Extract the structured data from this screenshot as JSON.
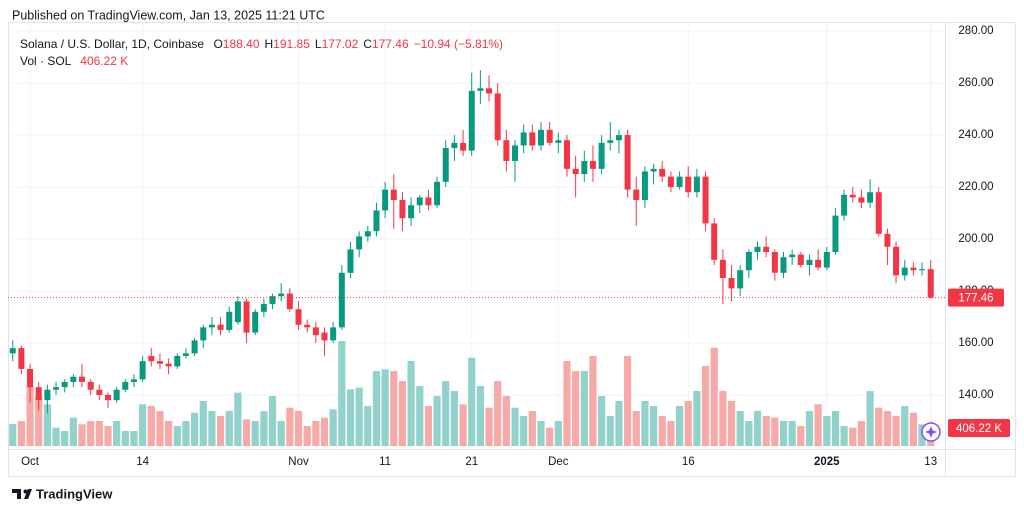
{
  "header": {
    "published": "Published on TradingView.com, Jan 13, 2025 11:21 UTC",
    "brand": "TradingView"
  },
  "chart_data": {
    "type": "candlestick",
    "title": "Solana / U.S. Dollar, 1D, Coinbase",
    "legend": [
      {
        "key": "O",
        "value": {
          "value": 188.4,
          "label": "188.40"
        }
      },
      {
        "key": "H",
        "value": {
          "value": 191.85,
          "label": "191.85"
        }
      },
      {
        "key": "L",
        "value": {
          "value": 177.02,
          "label": "177.02"
        }
      },
      {
        "key": "C",
        "value": {
          "value": 177.46,
          "label": "177.46"
        }
      }
    ],
    "change": "−10.94 (−5.81%)",
    "colors": {
      "up": "#089981",
      "down": "#f23645",
      "volume_up": "#92d2cc",
      "volume_down": "#f7a9a7"
    },
    "grid": true,
    "xlim": [
      -1.47,
      107.65
    ],
    "xticks": [
      {
        "value": 2,
        "label": "Oct"
      },
      {
        "value": 15,
        "label": "14"
      },
      {
        "value": 33,
        "label": "Nov"
      },
      {
        "value": 43,
        "label": "11"
      },
      {
        "value": 53,
        "label": "21"
      },
      {
        "value": 63,
        "label": "Dec"
      },
      {
        "value": 78,
        "label": "16"
      },
      {
        "value": 94,
        "label": "2025"
      },
      {
        "value": 106,
        "label": "13"
      }
    ],
    "ylim": [
      119.2,
      283.5
    ],
    "yticks": [
      {
        "value": 140,
        "label": "140.00"
      },
      {
        "value": 160,
        "label": "160.00"
      },
      {
        "value": 180,
        "label": "180.00"
      },
      {
        "value": 200,
        "label": "200.00"
      },
      {
        "value": 220,
        "label": "220.00"
      },
      {
        "value": 240,
        "label": "240.00"
      },
      {
        "value": 260,
        "label": "260.00"
      },
      {
        "value": 280,
        "label": "280.00"
      }
    ],
    "open": [
      156,
      158,
      150,
      143,
      138,
      142,
      143,
      145,
      147,
      145,
      142,
      140,
      138,
      142,
      145,
      146,
      155,
      153,
      152,
      151,
      155,
      156,
      161,
      166,
      167,
      165,
      168,
      176,
      164,
      172,
      175,
      178,
      179,
      173,
      167,
      166,
      164,
      161,
      166,
      187,
      196,
      201,
      203,
      211,
      219,
      215,
      208,
      213,
      216,
      213,
      222,
      235,
      237,
      234,
      257,
      258,
      256,
      238,
      230,
      236,
      241,
      236,
      242,
      237,
      238,
      227,
      225,
      230,
      227,
      237,
      238,
      240,
      219,
      215,
      226,
      227,
      224,
      220,
      224,
      218,
      224,
      206,
      192,
      185,
      181,
      188,
      195,
      197,
      195,
      187,
      193,
      194,
      190,
      192,
      189,
      195,
      209,
      217,
      216,
      214,
      218,
      202,
      197,
      186,
      189,
      188,
      188.4
    ],
    "high": [
      161,
      159,
      152,
      145,
      144,
      145,
      146,
      148,
      152,
      146,
      144,
      141,
      143,
      146,
      148,
      155,
      158,
      156,
      154,
      156,
      158,
      162,
      167,
      170,
      170,
      174,
      178,
      177,
      173,
      177,
      179,
      183,
      181,
      176,
      169,
      168,
      166,
      168,
      190,
      199,
      203,
      205,
      214,
      222,
      225,
      218,
      216,
      217,
      219,
      224,
      238,
      240,
      242,
      264,
      265,
      263,
      260,
      242,
      238,
      244,
      244,
      245,
      245,
      241,
      240,
      232,
      234,
      236,
      240,
      245,
      242,
      242,
      224,
      228,
      229,
      230,
      226,
      226,
      228,
      227,
      226,
      208,
      196,
      190,
      190,
      196,
      199,
      201,
      196,
      195,
      196,
      195,
      194,
      196,
      197,
      212,
      219,
      220,
      219,
      223,
      220,
      204,
      199,
      192,
      191,
      191,
      191.85
    ],
    "low": [
      153,
      148,
      137,
      134,
      133,
      140,
      141,
      143,
      143,
      140,
      138,
      135,
      137,
      141,
      143,
      145,
      151,
      150,
      148,
      150,
      154,
      155,
      158,
      163,
      163,
      164,
      167,
      160,
      163,
      170,
      173,
      176,
      172,
      165,
      164,
      160,
      155,
      160,
      165,
      185,
      193,
      199,
      201,
      208,
      204,
      203,
      205,
      210,
      211,
      212,
      220,
      230,
      232,
      232,
      252,
      253,
      236,
      226,
      222,
      233,
      234,
      234,
      236,
      233,
      224,
      216,
      222,
      222,
      225,
      234,
      233,
      216,
      205,
      212,
      221,
      222,
      218,
      219,
      216,
      216,
      203,
      190,
      175,
      176,
      178,
      185,
      192,
      193,
      184,
      185,
      190,
      189,
      186,
      188,
      188,
      194,
      207,
      214,
      212,
      212,
      201,
      190,
      183,
      184,
      186,
      186,
      177.02
    ],
    "close": [
      158,
      150,
      143,
      138,
      142,
      143,
      145,
      147,
      145,
      142,
      140,
      138,
      142,
      145,
      146,
      153,
      153,
      152,
      151,
      155,
      156,
      161,
      166,
      167,
      165,
      172,
      176,
      164,
      172,
      175,
      178,
      179,
      173,
      167,
      166,
      163,
      161,
      166,
      187,
      196,
      201,
      203,
      211,
      219,
      215,
      208,
      213,
      216,
      213,
      222,
      235,
      237,
      234,
      257,
      258,
      256,
      238,
      230,
      236,
      241,
      236,
      242,
      237,
      238,
      227,
      225,
      230,
      227,
      237,
      238,
      240,
      219,
      215,
      226,
      227,
      224,
      220,
      224,
      218,
      224,
      206,
      192,
      185,
      181,
      188,
      195,
      197,
      195,
      187,
      193,
      194,
      190,
      192,
      189,
      195,
      209,
      217,
      216,
      214,
      218,
      202,
      197,
      186,
      189,
      188,
      188.4,
      177.46
    ],
    "volume": {
      "name": "Vol · SOL",
      "last_label": "406.22 K",
      "ylim": [
        0,
        13200
      ],
      "values": [
        1320,
        1500,
        3600,
        3000,
        2500,
        1100,
        900,
        1700,
        1300,
        1500,
        1500,
        1200,
        1500,
        900,
        900,
        2500,
        2400,
        2100,
        1500,
        1200,
        1500,
        2000,
        2700,
        2100,
        1800,
        2100,
        3200,
        1600,
        1500,
        2100,
        3000,
        1500,
        2300,
        2100,
        1200,
        1500,
        1700,
        2200,
        6300,
        3400,
        3500,
        2400,
        4500,
        4600,
        4500,
        3900,
        5100,
        3600,
        2400,
        3000,
        3900,
        3300,
        2500,
        5300,
        3600,
        2300,
        3900,
        3000,
        2300,
        1800,
        2100,
        1500,
        1100,
        1500,
        5100,
        4500,
        4500,
        5400,
        3000,
        1800,
        2700,
        5400,
        2100,
        2700,
        2400,
        1800,
        1500,
        2400,
        2700,
        3300,
        4800,
        5900,
        3300,
        2700,
        2100,
        1500,
        2100,
        1800,
        1700,
        1500,
        1500,
        1200,
        2100,
        2500,
        1800,
        2100,
        1200,
        1100,
        1500,
        3300,
        2300,
        2100,
        1800,
        2400,
        2000,
        1300,
        406.22
      ]
    }
  }
}
